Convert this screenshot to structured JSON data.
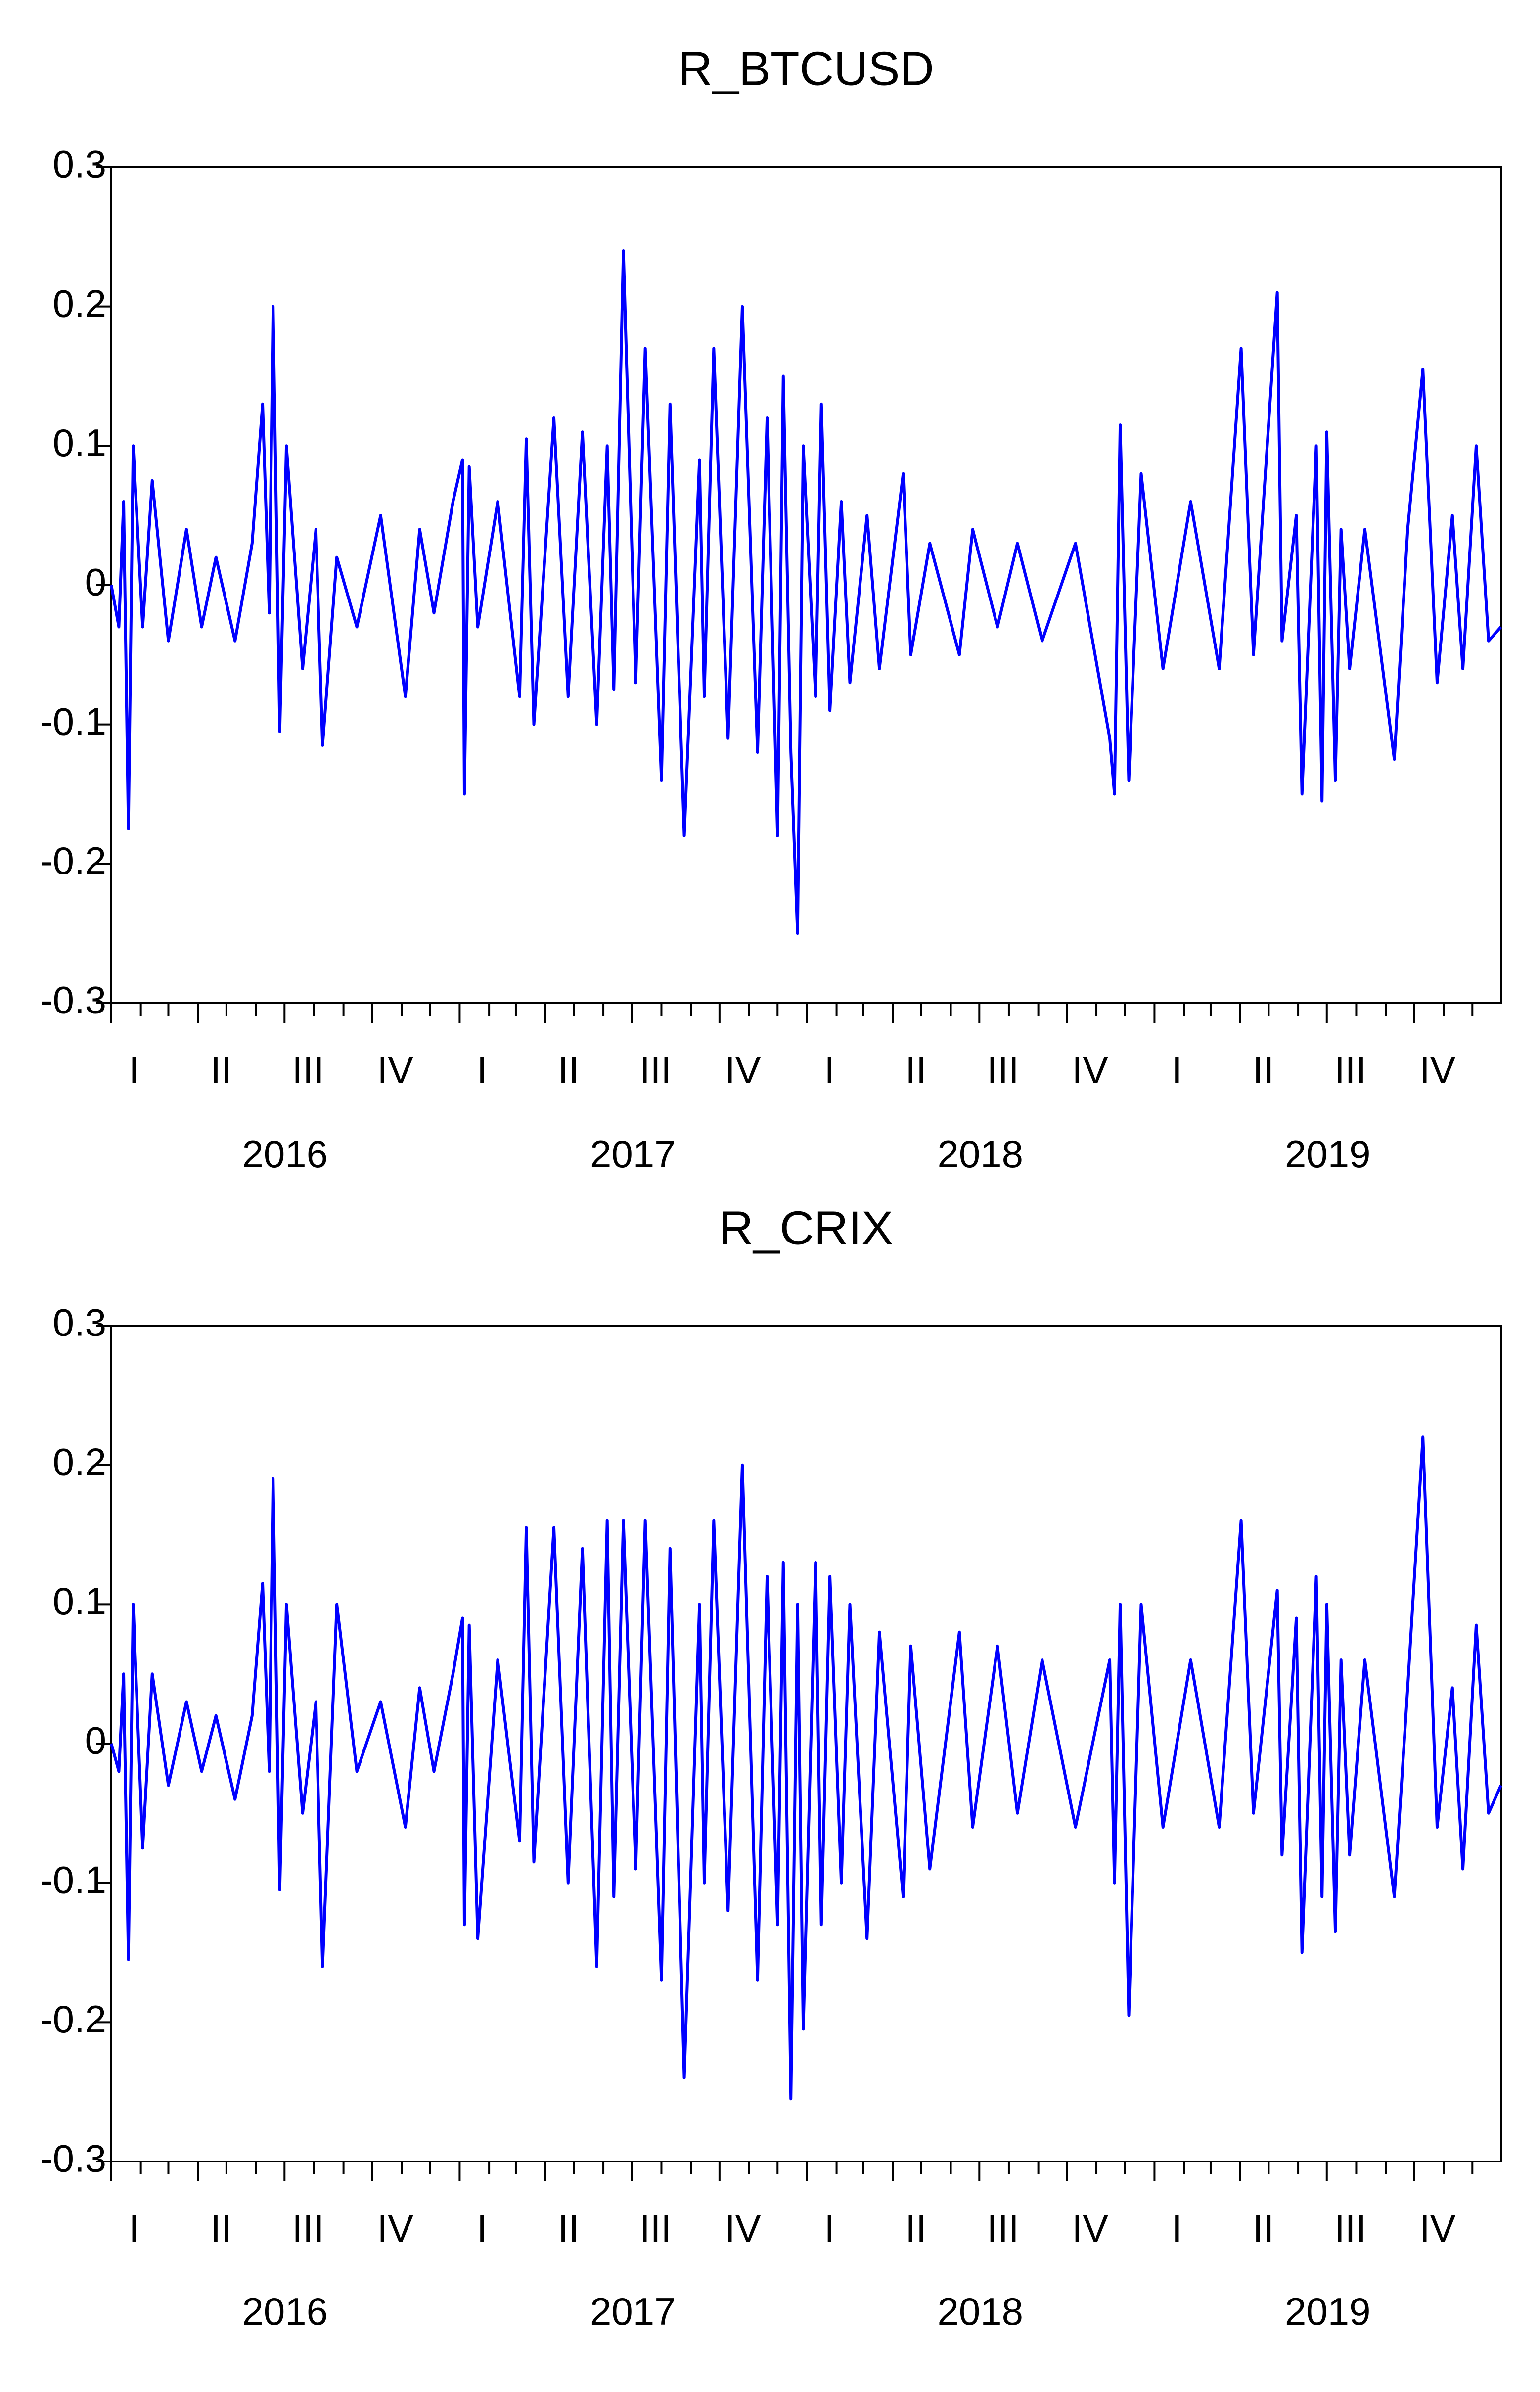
{
  "chart_data": [
    {
      "type": "line",
      "title": "R_BTCUSD",
      "ylim": [
        -0.3,
        0.3
      ],
      "yticks": [
        "0.3",
        "0.2",
        "0.1",
        "0",
        "-0.1",
        "-0.2",
        "-0.3"
      ],
      "ytick_values": [
        0.3,
        0.2,
        0.1,
        0,
        -0.1,
        -0.2,
        -0.3
      ],
      "quarter_labels": [
        "I",
        "II",
        "III",
        "IV",
        "I",
        "II",
        "III",
        "IV",
        "I",
        "II",
        "III",
        "IV",
        "I",
        "II",
        "III",
        "IV"
      ],
      "year_labels": [
        "2016",
        "2017",
        "2018",
        "2019"
      ],
      "x_range": [
        "2016-01-01",
        "2019-12-31"
      ],
      "line_color": "#0000ff",
      "grid": false,
      "series": [
        {
          "x": [
            "2016-01-01",
            "2016-01-09",
            "2016-01-14",
            "2016-01-19",
            "2016-01-24",
            "2016-02-03",
            "2016-02-13",
            "2016-03-01",
            "2016-03-20",
            "2016-04-05",
            "2016-04-20",
            "2016-05-10",
            "2016-05-28",
            "2016-06-08",
            "2016-06-15",
            "2016-06-19",
            "2016-06-26",
            "2016-07-03",
            "2016-07-20",
            "2016-08-03",
            "2016-08-10",
            "2016-08-25",
            "2016-09-15",
            "2016-10-10",
            "2016-11-05",
            "2016-11-20",
            "2016-12-05",
            "2016-12-25",
            "2017-01-04",
            "2017-01-06",
            "2017-01-11",
            "2017-01-20",
            "2017-02-10",
            "2017-03-05",
            "2017-03-12",
            "2017-03-20",
            "2017-04-10",
            "2017-04-25",
            "2017-05-10",
            "2017-05-25",
            "2017-06-05",
            "2017-06-12",
            "2017-06-22",
            "2017-07-05",
            "2017-07-15",
            "2017-08-01",
            "2017-08-10",
            "2017-08-25",
            "2017-09-10",
            "2017-09-15",
            "2017-09-25",
            "2017-10-10",
            "2017-10-25",
            "2017-11-10",
            "2017-11-20",
            "2017-12-01",
            "2017-12-07",
            "2017-12-15",
            "2017-12-22",
            "2017-12-28",
            "2018-01-10",
            "2018-01-16",
            "2018-01-25",
            "2018-02-06",
            "2018-02-15",
            "2018-03-05",
            "2018-03-18",
            "2018-04-12",
            "2018-04-20",
            "2018-05-10",
            "2018-06-10",
            "2018-06-24",
            "2018-07-20",
            "2018-08-10",
            "2018-09-05",
            "2018-10-10",
            "2018-11-15",
            "2018-11-20",
            "2018-11-26",
            "2018-12-05",
            "2018-12-18",
            "2019-01-10",
            "2019-02-08",
            "2019-03-10",
            "2019-04-02",
            "2019-04-15",
            "2019-05-10",
            "2019-05-15",
            "2019-05-30",
            "2019-06-05",
            "2019-06-20",
            "2019-06-26",
            "2019-07-01",
            "2019-07-10",
            "2019-07-16",
            "2019-07-25",
            "2019-08-10",
            "2019-09-10",
            "2019-09-24",
            "2019-10-10",
            "2019-10-25",
            "2019-11-10",
            "2019-11-21",
            "2019-12-05",
            "2019-12-18",
            "2019-12-31"
          ],
          "y": [
            0.0,
            -0.03,
            0.06,
            -0.175,
            0.1,
            -0.03,
            0.075,
            -0.04,
            0.04,
            -0.03,
            0.02,
            -0.04,
            0.03,
            0.13,
            -0.02,
            0.2,
            -0.105,
            0.1,
            -0.06,
            0.04,
            -0.115,
            0.02,
            -0.03,
            0.05,
            -0.08,
            0.04,
            -0.02,
            0.06,
            0.09,
            -0.15,
            0.085,
            -0.03,
            0.06,
            -0.08,
            0.105,
            -0.1,
            0.12,
            -0.08,
            0.11,
            -0.1,
            0.1,
            -0.075,
            0.24,
            -0.07,
            0.17,
            -0.14,
            0.13,
            -0.18,
            0.09,
            -0.08,
            0.17,
            -0.11,
            0.2,
            -0.12,
            0.12,
            -0.18,
            0.15,
            -0.12,
            -0.25,
            0.1,
            -0.08,
            0.13,
            -0.09,
            0.06,
            -0.07,
            0.05,
            -0.06,
            0.08,
            -0.05,
            0.03,
            -0.05,
            0.04,
            -0.03,
            0.03,
            -0.04,
            0.03,
            -0.11,
            -0.15,
            0.115,
            -0.14,
            0.08,
            -0.06,
            0.06,
            -0.06,
            0.17,
            -0.05,
            0.21,
            -0.04,
            0.05,
            -0.15,
            0.1,
            -0.155,
            0.11,
            -0.14,
            0.04,
            -0.06,
            0.04,
            -0.125,
            0.04,
            0.155,
            -0.07,
            0.05,
            -0.06,
            0.1,
            -0.04,
            -0.03
          ]
        }
      ]
    },
    {
      "type": "line",
      "title": "R_CRIX",
      "ylim": [
        -0.3,
        0.3
      ],
      "yticks": [
        "0.3",
        "0.2",
        "0.1",
        "0",
        "-0.1",
        "-0.2",
        "-0.3"
      ],
      "ytick_values": [
        0.3,
        0.2,
        0.1,
        0,
        -0.1,
        -0.2,
        -0.3
      ],
      "quarter_labels": [
        "I",
        "II",
        "III",
        "IV",
        "I",
        "II",
        "III",
        "IV",
        "I",
        "II",
        "III",
        "IV",
        "I",
        "II",
        "III",
        "IV"
      ],
      "year_labels": [
        "2016",
        "2017",
        "2018",
        "2019"
      ],
      "x_range": [
        "2016-01-01",
        "2019-12-31"
      ],
      "line_color": "#0000ff",
      "grid": false,
      "series": [
        {
          "x": [
            "2016-01-01",
            "2016-01-09",
            "2016-01-14",
            "2016-01-19",
            "2016-01-24",
            "2016-02-03",
            "2016-02-13",
            "2016-03-01",
            "2016-03-20",
            "2016-04-05",
            "2016-04-20",
            "2016-05-10",
            "2016-05-28",
            "2016-06-08",
            "2016-06-15",
            "2016-06-19",
            "2016-06-26",
            "2016-07-03",
            "2016-07-20",
            "2016-08-03",
            "2016-08-10",
            "2016-08-25",
            "2016-09-15",
            "2016-10-10",
            "2016-11-05",
            "2016-11-20",
            "2016-12-05",
            "2016-12-25",
            "2017-01-04",
            "2017-01-06",
            "2017-01-11",
            "2017-01-20",
            "2017-02-10",
            "2017-03-05",
            "2017-03-12",
            "2017-03-20",
            "2017-04-10",
            "2017-04-25",
            "2017-05-10",
            "2017-05-25",
            "2017-06-05",
            "2017-06-12",
            "2017-06-22",
            "2017-07-05",
            "2017-07-15",
            "2017-08-01",
            "2017-08-10",
            "2017-08-25",
            "2017-09-10",
            "2017-09-15",
            "2017-09-25",
            "2017-10-10",
            "2017-10-25",
            "2017-11-10",
            "2017-11-20",
            "2017-12-01",
            "2017-12-07",
            "2017-12-15",
            "2017-12-22",
            "2017-12-28",
            "2018-01-10",
            "2018-01-16",
            "2018-01-25",
            "2018-02-06",
            "2018-02-15",
            "2018-03-05",
            "2018-03-18",
            "2018-04-12",
            "2018-04-20",
            "2018-05-10",
            "2018-06-10",
            "2018-06-24",
            "2018-07-20",
            "2018-08-10",
            "2018-09-05",
            "2018-10-10",
            "2018-11-15",
            "2018-11-20",
            "2018-11-26",
            "2018-12-05",
            "2018-12-18",
            "2019-01-10",
            "2019-02-08",
            "2019-03-10",
            "2019-04-02",
            "2019-04-15",
            "2019-05-10",
            "2019-05-15",
            "2019-05-30",
            "2019-06-05",
            "2019-06-20",
            "2019-06-26",
            "2019-07-01",
            "2019-07-10",
            "2019-07-16",
            "2019-07-25",
            "2019-08-10",
            "2019-09-10",
            "2019-09-24",
            "2019-10-10",
            "2019-10-25",
            "2019-11-10",
            "2019-11-21",
            "2019-12-05",
            "2019-12-18",
            "2019-12-31"
          ],
          "y": [
            0.0,
            -0.02,
            0.05,
            -0.155,
            0.1,
            -0.075,
            0.05,
            -0.03,
            0.03,
            -0.02,
            0.02,
            -0.04,
            0.02,
            0.115,
            -0.02,
            0.19,
            -0.105,
            0.1,
            -0.05,
            0.03,
            -0.16,
            0.1,
            -0.02,
            0.03,
            -0.06,
            0.04,
            -0.02,
            0.05,
            0.09,
            -0.13,
            0.085,
            -0.14,
            0.06,
            -0.07,
            0.155,
            -0.085,
            0.155,
            -0.1,
            0.14,
            -0.16,
            0.16,
            -0.11,
            0.16,
            -0.09,
            0.16,
            -0.17,
            0.14,
            -0.24,
            0.1,
            -0.1,
            0.16,
            -0.12,
            0.2,
            -0.17,
            0.12,
            -0.13,
            0.13,
            -0.255,
            0.1,
            -0.205,
            0.13,
            -0.13,
            0.12,
            -0.1,
            0.1,
            -0.14,
            0.08,
            -0.11,
            0.07,
            -0.09,
            0.08,
            -0.06,
            0.07,
            -0.05,
            0.06,
            -0.06,
            0.06,
            -0.1,
            0.1,
            -0.195,
            0.1,
            -0.06,
            0.06,
            -0.06,
            0.16,
            -0.05,
            0.11,
            -0.08,
            0.09,
            -0.15,
            0.12,
            -0.11,
            0.1,
            -0.135,
            0.06,
            -0.08,
            0.06,
            -0.11,
            0.04,
            0.22,
            -0.06,
            0.04,
            -0.09,
            0.085,
            -0.05,
            -0.03
          ]
        }
      ]
    }
  ]
}
